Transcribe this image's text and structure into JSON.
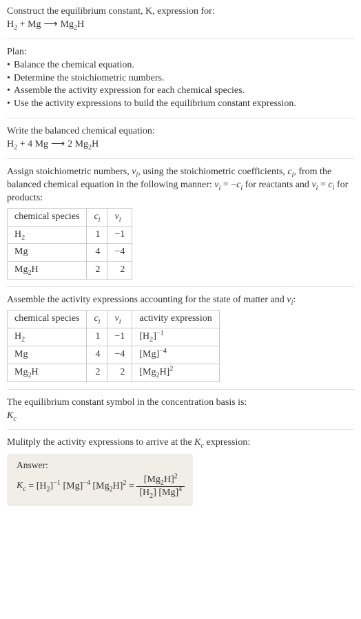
{
  "title_line1": "Construct the equilibrium constant, K, expression for:",
  "equation_unbalanced_plain": "H₂ + Mg ⟶ Mg₂H",
  "plan": {
    "header": "Plan:",
    "items": [
      "Balance the chemical equation.",
      "Determine the stoichiometric numbers.",
      "Assemble the activity expression for each chemical species.",
      "Use the activity expressions to build the equilibrium constant expression."
    ],
    "bullet": "•"
  },
  "balanced_header": "Write the balanced chemical equation:",
  "equation_balanced_plain": "H₂ + 4 Mg ⟶ 2 Mg₂H",
  "stoich_intro_part1": "Assign stoichiometric numbers, ",
  "stoich_intro_part2": ", using the stoichiometric coefficients, ",
  "stoich_intro_part3": ", from the balanced chemical equation in the following manner: ",
  "stoich_intro_part4": " for reactants and ",
  "stoich_intro_part5": " for products:",
  "table1": {
    "headers": [
      "chemical species"
    ],
    "rows": [
      {
        "species": "H₂",
        "c": "1",
        "v": "−1"
      },
      {
        "species": "Mg",
        "c": "4",
        "v": "−4"
      },
      {
        "species": "Mg₂H",
        "c": "2",
        "v": "2"
      }
    ],
    "border_color": "#c9c9c9",
    "fontsize": 14
  },
  "activity_intro_part1": "Assemble the activity expressions accounting for the state of matter and ",
  "activity_intro_part2": ":",
  "table2": {
    "headers": [
      "chemical species",
      null,
      null,
      "activity expression"
    ],
    "rows": [
      {
        "species": "H₂",
        "c": "1",
        "v": "−1"
      },
      {
        "species": "Mg",
        "c": "4",
        "v": "−4"
      },
      {
        "species": "Mg₂H",
        "c": "2",
        "v": "2"
      }
    ],
    "border_color": "#c9c9c9",
    "fontsize": 14
  },
  "kc_symbol_line": "The equilibrium constant symbol in the concentration basis is:",
  "multiply_line_part1": "Mulitply the activity expressions to arrive at the ",
  "multiply_line_part2": " expression:",
  "answer_label": "Answer:",
  "colors": {
    "text": "#333333",
    "rule": "#dcdcdc",
    "answer_bg": "#f0eee6",
    "table_border": "#c9c9c9"
  }
}
